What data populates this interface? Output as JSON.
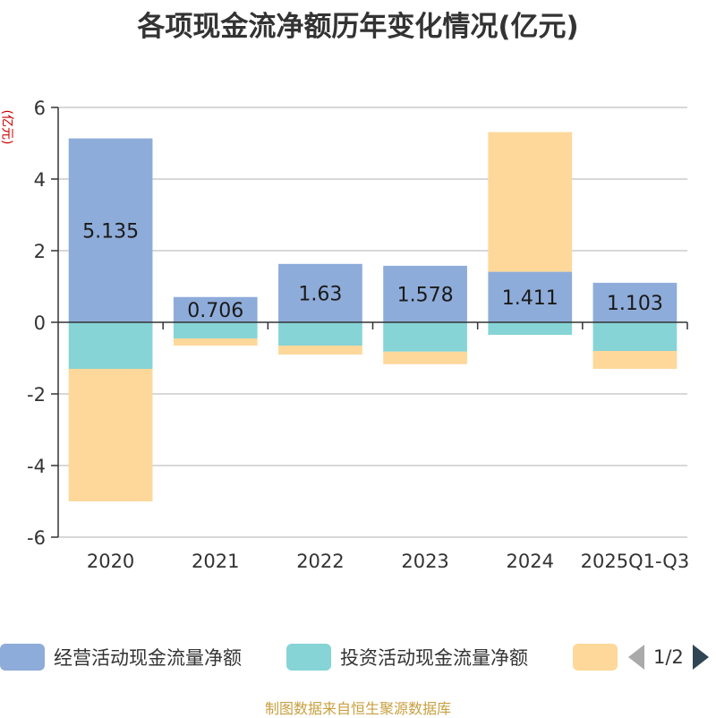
{
  "title": "各项现金流净额历年变化情况(亿元)",
  "unit_label": "(亿元)",
  "source": "制图数据来自恒生聚源数据库",
  "pager": {
    "current": "1/2"
  },
  "chart_data": {
    "type": "bar",
    "stacked": true,
    "categories": [
      "2020",
      "2021",
      "2022",
      "2023",
      "2024",
      "2025Q1-Q3"
    ],
    "ylim": [
      -6,
      6
    ],
    "yticks": [
      6,
      4,
      2,
      0,
      -2,
      -4,
      -6
    ],
    "legend_position": "bottom",
    "grid": true,
    "series": [
      {
        "name": "经营活动现金流量净额",
        "color": "#8eacd9",
        "values": [
          5.135,
          0.706,
          1.63,
          1.578,
          1.411,
          1.103
        ],
        "labels": [
          "5.135",
          "0.706",
          "1.63",
          "1.578",
          "1.411",
          "1.103"
        ]
      },
      {
        "name": "投资活动现金流量净额",
        "color": "#86d4d6",
        "values": [
          -1.3,
          -0.45,
          -0.65,
          -0.82,
          -0.35,
          -0.8
        ]
      },
      {
        "name": "",
        "color": "#fdd89a",
        "values": [
          -3.7,
          -0.2,
          -0.25,
          -0.35,
          3.9,
          -0.5
        ]
      }
    ]
  }
}
